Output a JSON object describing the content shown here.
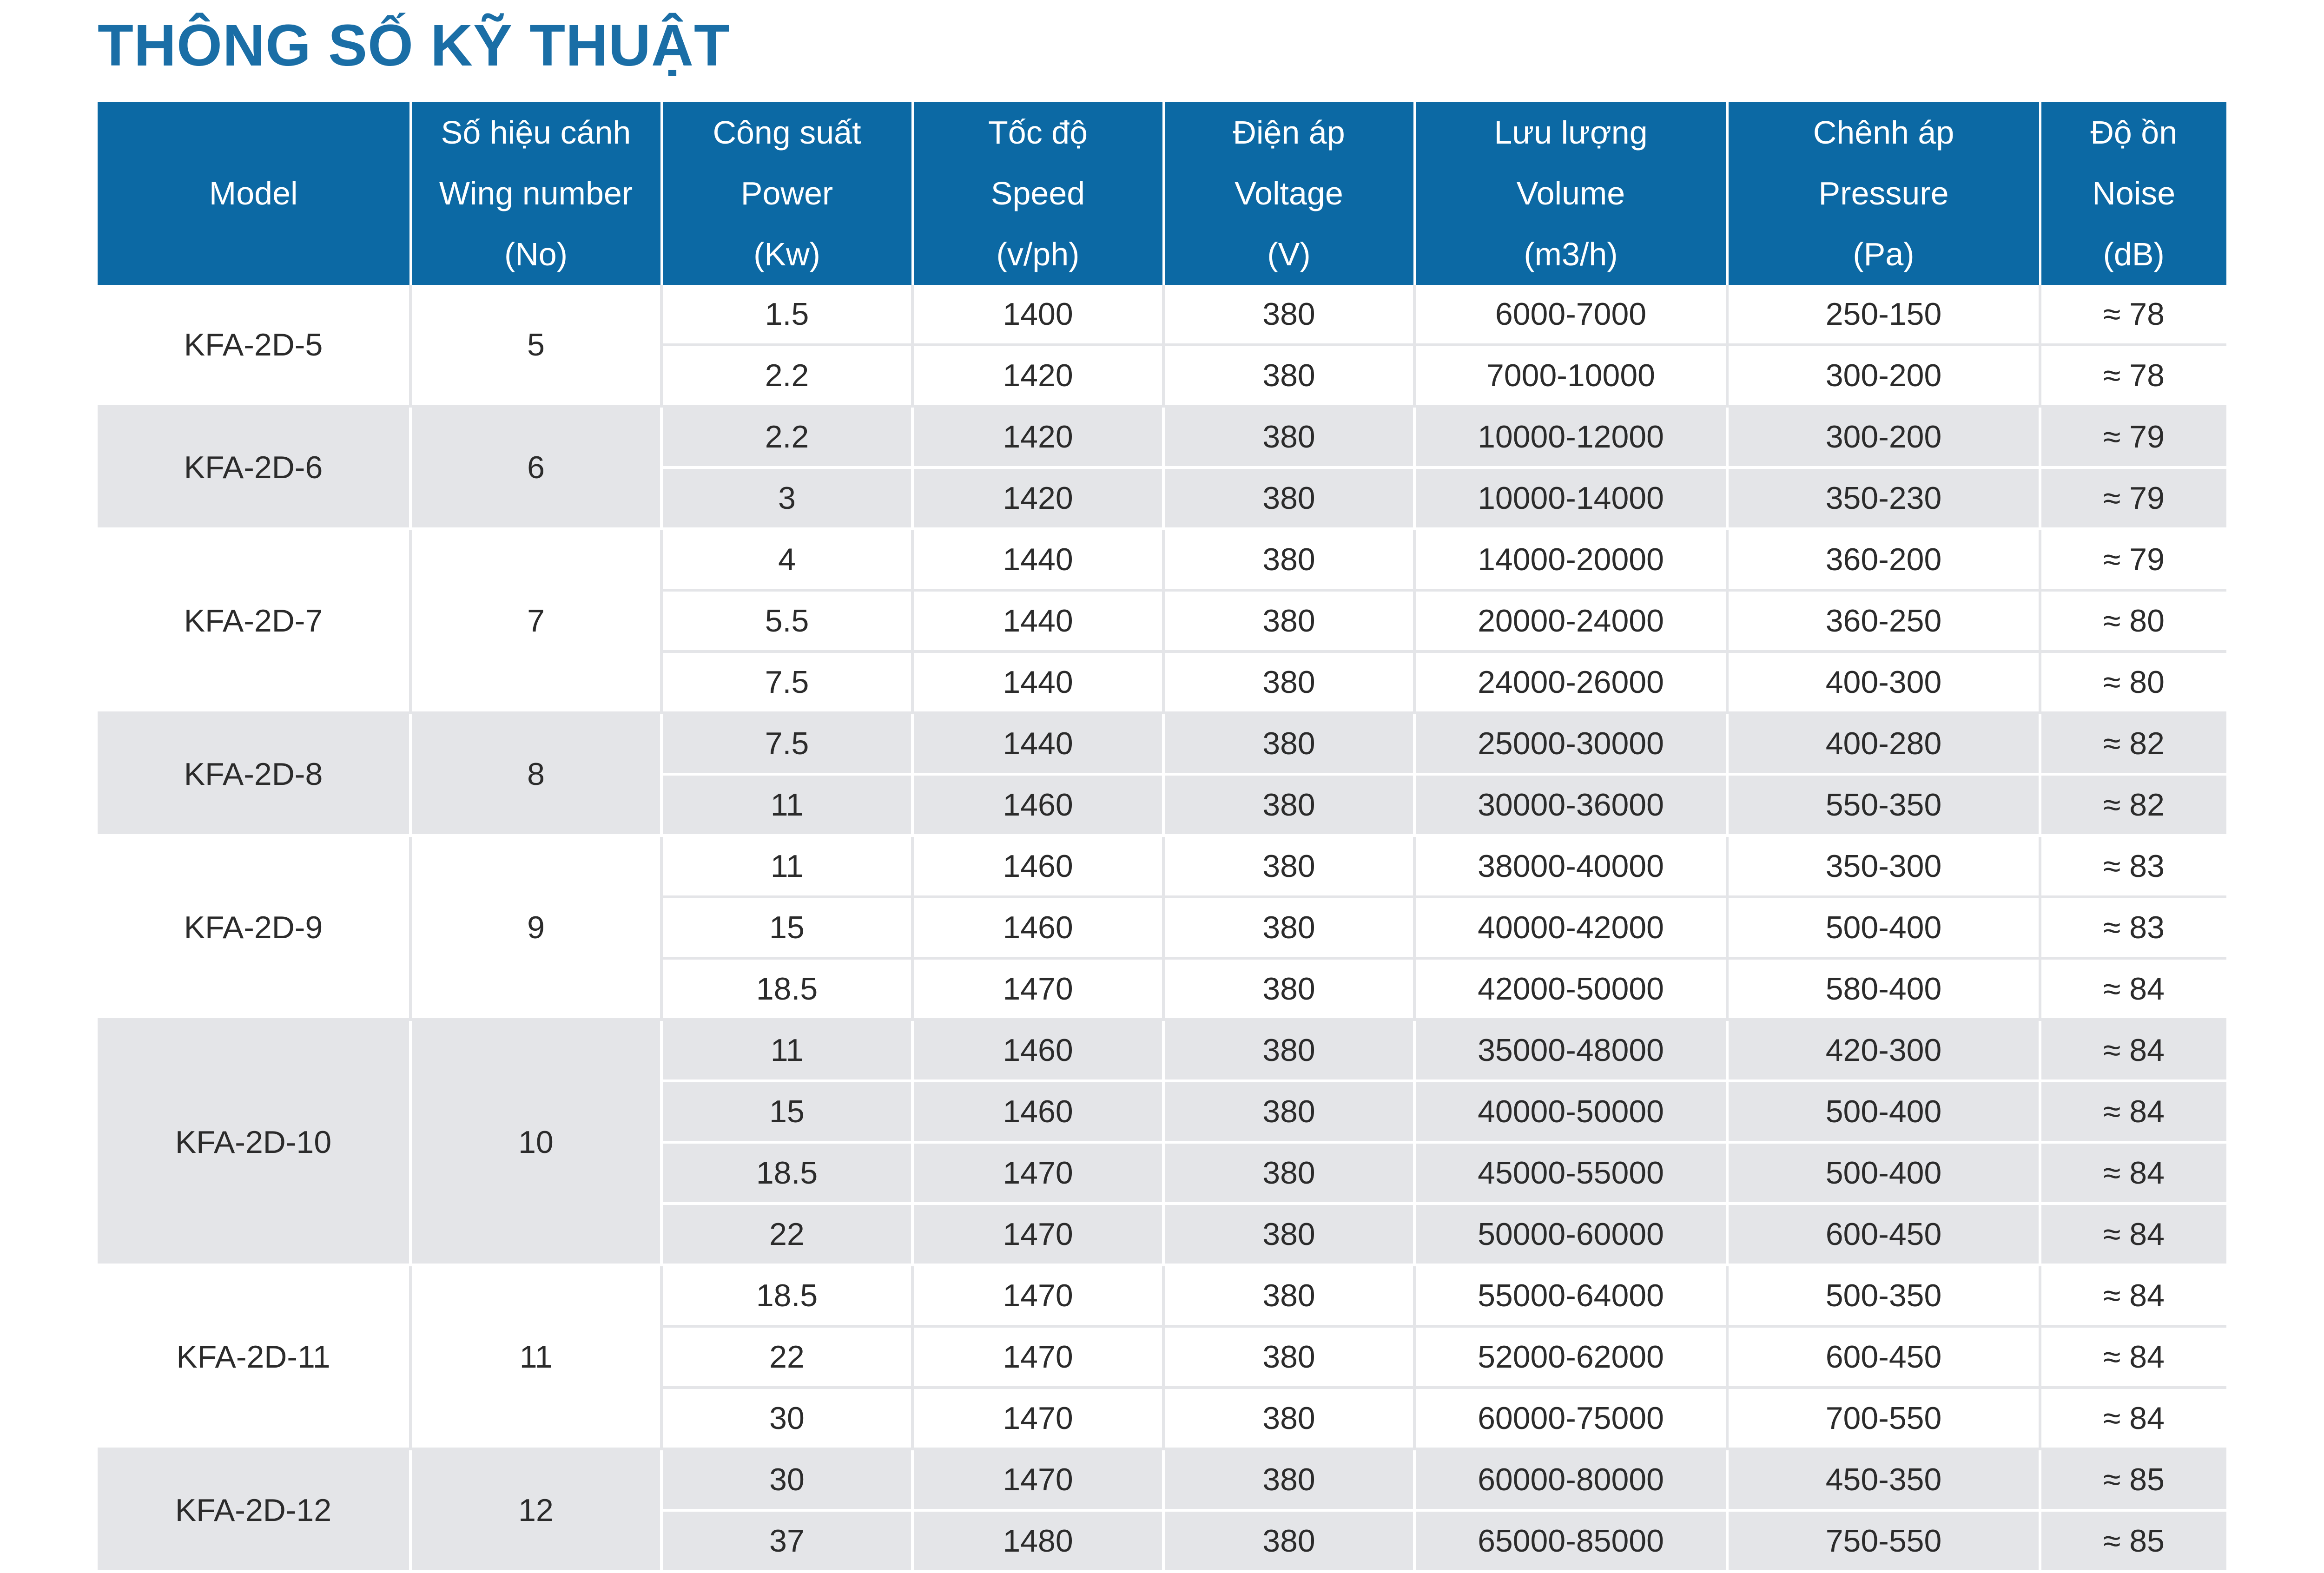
{
  "title": "THÔNG SỐ KỸ THUẬT",
  "table": {
    "headers": [
      [
        "",
        "Model",
        ""
      ],
      [
        "Số hiệu cánh",
        "Wing number",
        "(No)"
      ],
      [
        "Công suất",
        "Power",
        "(Kw)"
      ],
      [
        "Tốc độ",
        "Speed",
        "(v/ph)"
      ],
      [
        "Điện áp",
        "Voltage",
        "(V)"
      ],
      [
        "Lưu lượng",
        "Volume",
        "(m3/h)"
      ],
      [
        "Chênh áp",
        "Pressure",
        "(Pa)"
      ],
      [
        "Độ ồn",
        "Noise",
        "(dB)"
      ]
    ],
    "groups": [
      {
        "model": "KFA-2D-5",
        "wing": "5",
        "rows": [
          [
            "1.5",
            "1400",
            "380",
            "6000-7000",
            "250-150",
            "≈ 78"
          ],
          [
            "2.2",
            "1420",
            "380",
            "7000-10000",
            "300-200",
            "≈ 78"
          ]
        ]
      },
      {
        "model": "KFA-2D-6",
        "wing": "6",
        "rows": [
          [
            "2.2",
            "1420",
            "380",
            "10000-12000",
            "300-200",
            "≈ 79"
          ],
          [
            "3",
            "1420",
            "380",
            "10000-14000",
            "350-230",
            "≈ 79"
          ]
        ]
      },
      {
        "model": "KFA-2D-7",
        "wing": "7",
        "rows": [
          [
            "4",
            "1440",
            "380",
            "14000-20000",
            "360-200",
            "≈ 79"
          ],
          [
            "5.5",
            "1440",
            "380",
            "20000-24000",
            "360-250",
            "≈ 80"
          ],
          [
            "7.5",
            "1440",
            "380",
            "24000-26000",
            "400-300",
            "≈ 80"
          ]
        ]
      },
      {
        "model": "KFA-2D-8",
        "wing": "8",
        "rows": [
          [
            "7.5",
            "1440",
            "380",
            "25000-30000",
            "400-280",
            "≈ 82"
          ],
          [
            "11",
            "1460",
            "380",
            "30000-36000",
            "550-350",
            "≈ 82"
          ]
        ]
      },
      {
        "model": "KFA-2D-9",
        "wing": "9",
        "rows": [
          [
            "11",
            "1460",
            "380",
            "38000-40000",
            "350-300",
            "≈ 83"
          ],
          [
            "15",
            "1460",
            "380",
            "40000-42000",
            "500-400",
            "≈ 83"
          ],
          [
            "18.5",
            "1470",
            "380",
            "42000-50000",
            "580-400",
            "≈ 84"
          ]
        ]
      },
      {
        "model": "KFA-2D-10",
        "wing": "10",
        "rows": [
          [
            "11",
            "1460",
            "380",
            "35000-48000",
            "420-300",
            "≈ 84"
          ],
          [
            "15",
            "1460",
            "380",
            "40000-50000",
            "500-400",
            "≈ 84"
          ],
          [
            "18.5",
            "1470",
            "380",
            "45000-55000",
            "500-400",
            "≈ 84"
          ],
          [
            "22",
            "1470",
            "380",
            "50000-60000",
            "600-450",
            "≈ 84"
          ]
        ]
      },
      {
        "model": "KFA-2D-11",
        "wing": "11",
        "rows": [
          [
            "18.5",
            "1470",
            "380",
            "55000-64000",
            "500-350",
            "≈ 84"
          ],
          [
            "22",
            "1470",
            "380",
            "52000-62000",
            "600-450",
            "≈ 84"
          ],
          [
            "30",
            "1470",
            "380",
            "60000-75000",
            "700-550",
            "≈ 84"
          ]
        ]
      },
      {
        "model": "KFA-2D-12",
        "wing": "12",
        "rows": [
          [
            "30",
            "1470",
            "380",
            "60000-80000",
            "450-350",
            "≈ 85"
          ],
          [
            "37",
            "1480",
            "380",
            "65000-85000",
            "750-550",
            "≈ 85"
          ]
        ]
      }
    ]
  }
}
